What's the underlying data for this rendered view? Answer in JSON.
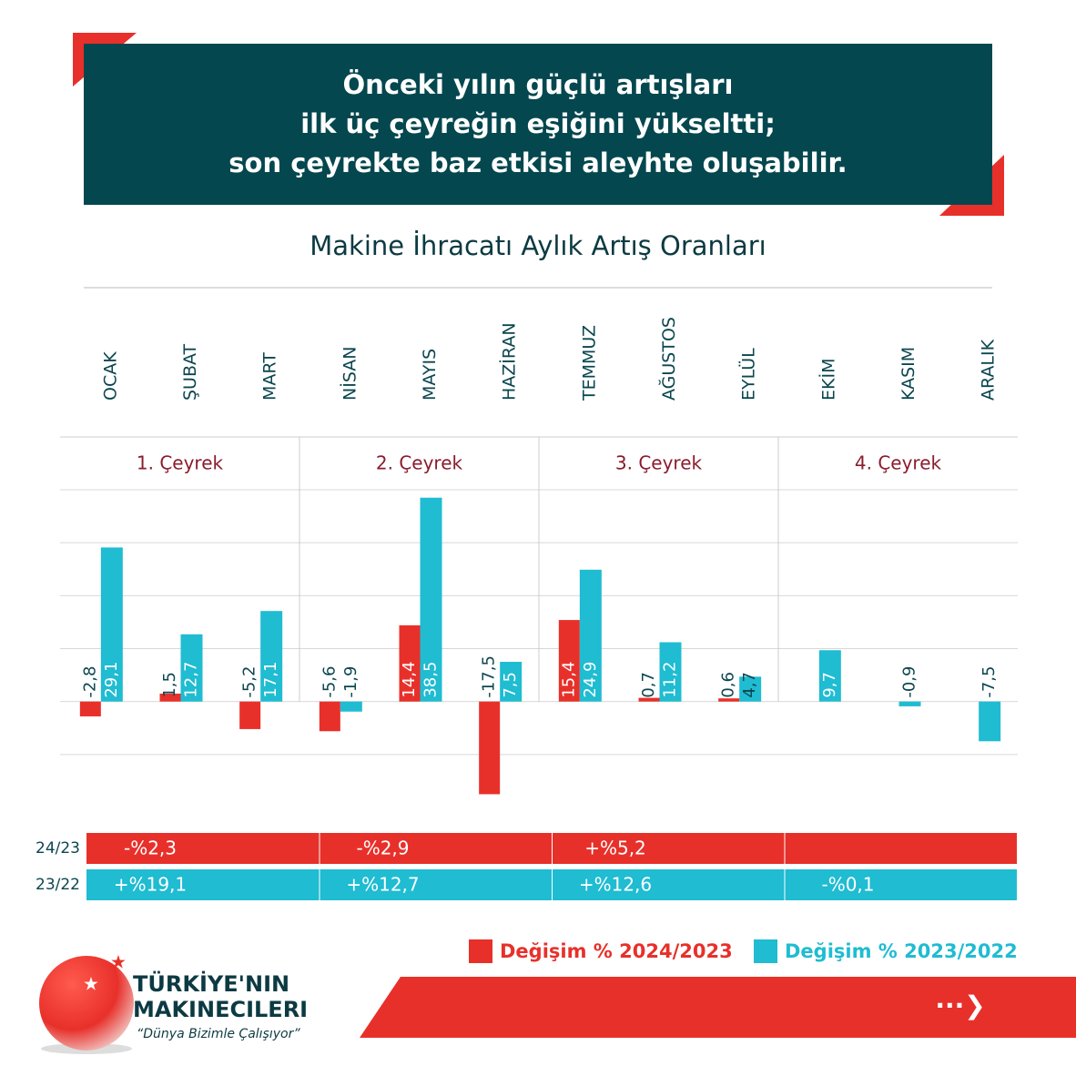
{
  "header": {
    "lines": [
      "Önceki yılın güçlü artışları",
      "ilk üç çeyreğin eşiğini yükseltti;",
      "son çeyrekte baz etkisi aleyhte oluşabilir."
    ]
  },
  "chart_data": {
    "type": "bar",
    "title": "Makine İhracatı Aylık Artış Oranları",
    "categories": [
      "OCAK",
      "ŞUBAT",
      "MART",
      "NİSAN",
      "MAYIS",
      "HAZİRAN",
      "TEMMUZ",
      "AĞUSTOS",
      "EYLÜL",
      "EKİM",
      "KASIM",
      "ARALIK"
    ],
    "quarters": [
      "1. Çeyrek",
      "2. Çeyrek",
      "3. Çeyrek",
      "4. Çeyrek"
    ],
    "series": [
      {
        "name": "Değişim % 2024/2023",
        "color": "#e8302a",
        "values": [
          -2.8,
          1.5,
          -5.2,
          -5.6,
          14.4,
          -17.5,
          15.4,
          0.7,
          0.6,
          null,
          null,
          null
        ],
        "value_labels": [
          "-2,8",
          "1,5",
          "-5,2",
          "-5,6",
          "14,4",
          "-17,5",
          "15,4",
          "0,7",
          "0,6",
          null,
          null,
          null
        ]
      },
      {
        "name": "Değişim % 2023/2022",
        "color": "#1fbcd2",
        "values": [
          29.1,
          12.7,
          17.1,
          -1.9,
          38.5,
          7.5,
          24.9,
          11.2,
          4.7,
          9.7,
          -0.9,
          -7.5
        ],
        "value_labels": [
          "29,1",
          "12,7",
          "17,1",
          "-1,9",
          "38,5",
          "7,5",
          "24,9",
          "11,2",
          "4,7",
          "9,7",
          "-0,9",
          "-7,5"
        ]
      }
    ],
    "ylim": [
      -20,
      40
    ],
    "yticks": [
      -10,
      0,
      10,
      20,
      30,
      40
    ],
    "grid": true,
    "summary": {
      "labels": [
        "24/23",
        "23/22"
      ],
      "rows": [
        [
          "-%2,3",
          "-%2,9",
          "+%5,2"
        ],
        [
          "+%19,1",
          "+%12,7",
          "+%12,6",
          "-%0,1"
        ]
      ]
    }
  },
  "logo": {
    "name_lines": [
      "TÜRKİYE'NIN",
      "MAKINECILERI"
    ],
    "slogan": "“Dünya Bizimle Çalışıyor”"
  }
}
